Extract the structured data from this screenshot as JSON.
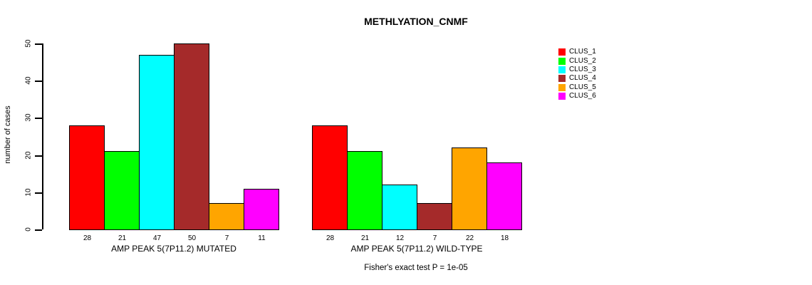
{
  "chart_data": {
    "type": "bar",
    "title": "METHLYATION_CNMF",
    "ylabel": "number of cases",
    "ylim": [
      0,
      50
    ],
    "yticks": [
      0,
      10,
      20,
      30,
      40,
      50
    ],
    "grid": false,
    "legend_position": "top-right",
    "show_value_labels": true,
    "categories": [
      "AMP PEAK 5(7P11.2) MUTATED",
      "AMP PEAK 5(7P11.2) WILD-TYPE"
    ],
    "series": [
      {
        "name": "CLUS_1",
        "color": "#FF0000",
        "values": [
          28,
          28
        ]
      },
      {
        "name": "CLUS_2",
        "color": "#00FF00",
        "values": [
          21,
          21
        ]
      },
      {
        "name": "CLUS_3",
        "color": "#00FFFF",
        "values": [
          47,
          12
        ]
      },
      {
        "name": "CLUS_4",
        "color": "#A52A2A",
        "values": [
          50,
          7
        ]
      },
      {
        "name": "CLUS_5",
        "color": "#FFA500",
        "values": [
          7,
          22
        ]
      },
      {
        "name": "CLUS_6",
        "color": "#FF00FF",
        "values": [
          11,
          18
        ]
      }
    ],
    "annotation": "Fisher's exact test P = 1e-05"
  }
}
